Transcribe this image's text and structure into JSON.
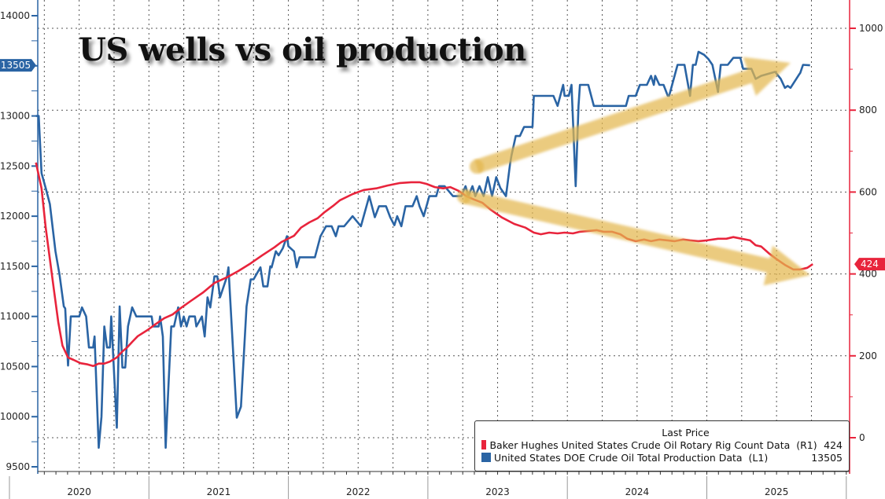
{
  "title": "US wells vs oil production",
  "legend": {
    "header": "Last Price",
    "items": [
      {
        "label": "Baker Hughes United States Crude Oil Rotary Rig Count Data  (R1)",
        "value": "424",
        "color": "#e8243c"
      },
      {
        "label": "United States DOE Crude Oil Total Production Data  (L1)",
        "value": "13505",
        "color": "#2a64a4"
      }
    ]
  },
  "chart_data": {
    "type": "line",
    "title": "US wells vs oil production",
    "x_tick_labels": [
      "2020",
      "2021",
      "2022",
      "2023",
      "2024",
      "2025"
    ],
    "xlim": [
      2020.0,
      2026.0
    ],
    "left_axis": {
      "ticks": [
        "14000",
        "13000",
        "12500",
        "12000",
        "11500",
        "11000",
        "10500",
        "10000",
        "9500"
      ],
      "ylim": [
        9450,
        14050
      ],
      "last_value_tag": "13505",
      "color": "#2a64a4"
    },
    "right_axis": {
      "ticks": [
        "1000",
        "800",
        "600",
        "400",
        "200",
        "0"
      ],
      "ylim": [
        -80,
        1060
      ],
      "last_value_tag": "424",
      "color": "#e8243c"
    },
    "grid": true,
    "legend_position": "bottom-right",
    "series": [
      {
        "name": "United States DOE Crude Oil Total Production Data (L1)",
        "axis": "left",
        "color": "#2a64a4",
        "x": [
          2020.19,
          2020.21,
          2020.23,
          2020.26,
          2020.29,
          2020.33,
          2020.36,
          2020.39,
          2020.4,
          2020.42,
          2020.44,
          2020.5,
          2020.52,
          2020.55,
          2020.57,
          2020.6,
          2020.61,
          2020.64,
          2020.66,
          2020.68,
          2020.7,
          2020.72,
          2020.73,
          2020.77,
          2020.79,
          2020.81,
          2020.83,
          2020.85,
          2020.88,
          2020.91,
          2021.02,
          2021.03,
          2021.07,
          2021.08,
          2021.1,
          2021.12,
          2021.13,
          2021.16,
          2021.18,
          2021.21,
          2021.23,
          2021.25,
          2021.27,
          2021.29,
          2021.33,
          2021.34,
          2021.38,
          2021.4,
          2021.42,
          2021.44,
          2021.47,
          2021.49,
          2021.51,
          2021.56,
          2021.57,
          2021.63,
          2021.66,
          2021.7,
          2021.73,
          2021.75,
          2021.8,
          2021.82,
          2021.85,
          2021.87,
          2021.88,
          2021.91,
          2021.93,
          2021.96,
          2021.99,
          2022.0,
          2022.04,
          2022.06,
          2022.08,
          2022.19,
          2022.23,
          2022.27,
          2022.31,
          2022.34,
          2022.36,
          2022.4,
          2022.46,
          2022.52,
          2022.58,
          2022.62,
          2022.65,
          2022.7,
          2022.73,
          2022.76,
          2022.78,
          2022.81,
          2022.84,
          2022.89,
          2022.92,
          2022.94,
          2022.97,
          2023.01,
          2023.06,
          2023.08,
          2023.12,
          2023.18,
          2023.24,
          2023.27,
          2023.29,
          2023.32,
          2023.34,
          2023.37,
          2023.4,
          2023.43,
          2023.46,
          2023.49,
          2023.52,
          2023.56,
          2023.59,
          2023.6,
          2023.63,
          2023.66,
          2023.69,
          2023.75,
          2023.76,
          2023.9,
          2023.93,
          2023.97,
          2023.98,
          2024.01,
          2024.03,
          2024.06,
          2024.08,
          2024.09,
          2024.15,
          2024.19,
          2024.42,
          2024.44,
          2024.49,
          2024.52,
          2024.57,
          2024.6,
          2024.62,
          2024.63,
          2024.66,
          2024.69,
          2024.72,
          2024.73,
          2024.79,
          2024.84,
          2024.88,
          2024.9,
          2024.92,
          2024.94,
          2024.98,
          2025.01,
          2025.04,
          2025.08,
          2025.1,
          2025.15,
          2025.19,
          2025.24,
          2025.26,
          2025.32,
          2025.35,
          2025.39,
          2025.49,
          2025.53,
          2025.56,
          2025.58,
          2025.6,
          2025.66,
          2025.67,
          2025.69,
          2025.74
        ],
        "values": [
          13000,
          13000,
          12430,
          12280,
          12120,
          11650,
          11410,
          11100,
          11080,
          10510,
          11000,
          11000,
          11090,
          11000,
          10690,
          10690,
          10800,
          9690,
          10000,
          10900,
          10690,
          10690,
          11000,
          9890,
          11100,
          10490,
          10490,
          10900,
          11090,
          11000,
          11000,
          10900,
          10900,
          11000,
          10800,
          9690,
          10000,
          10900,
          10900,
          11090,
          10900,
          11000,
          10900,
          11000,
          11000,
          10900,
          11000,
          10800,
          11190,
          11090,
          11400,
          11400,
          11190,
          11400,
          11490,
          9990,
          10100,
          11100,
          11370,
          11370,
          11490,
          11300,
          11300,
          11500,
          11490,
          11650,
          11610,
          11680,
          11800,
          11700,
          11650,
          11490,
          11590,
          11590,
          11800,
          11900,
          11900,
          11800,
          11900,
          11900,
          12000,
          11900,
          12200,
          11990,
          12100,
          12100,
          11990,
          11910,
          12000,
          11900,
          12100,
          12100,
          12200,
          12100,
          12000,
          12200,
          12200,
          12300,
          12300,
          12200,
          12200,
          12300,
          12200,
          12300,
          12200,
          12300,
          12200,
          12390,
          12200,
          12390,
          12280,
          12200,
          12530,
          12610,
          12800,
          12800,
          12890,
          12890,
          13200,
          13200,
          13100,
          13310,
          13200,
          13200,
          13310,
          12300,
          13100,
          13310,
          13310,
          13100,
          13100,
          13200,
          13200,
          13310,
          13310,
          13400,
          13310,
          13400,
          13310,
          13310,
          13200,
          13200,
          13510,
          13510,
          13200,
          13510,
          13510,
          13640,
          13610,
          13570,
          13510,
          13240,
          13510,
          13510,
          13580,
          13580,
          13470,
          13470,
          13370,
          13400,
          13440,
          13370,
          13280,
          13300,
          13280,
          13410,
          13430,
          13510,
          13505
        ]
      },
      {
        "name": "Baker Hughes United States Crude Oil Rotary Rig Count Data (R1)",
        "axis": "right",
        "color": "#e8243c",
        "x": [
          2020.19,
          2020.23,
          2020.26,
          2020.29,
          2020.32,
          2020.35,
          2020.38,
          2020.42,
          2020.46,
          2020.51,
          2020.56,
          2020.6,
          2020.64,
          2020.68,
          2020.72,
          2020.77,
          2020.81,
          2020.84,
          2020.88,
          2020.92,
          2020.99,
          2021.05,
          2021.11,
          2021.17,
          2021.23,
          2021.3,
          2021.39,
          2021.47,
          2021.56,
          2021.64,
          2021.73,
          2021.81,
          2021.9,
          2021.95,
          2022.04,
          2022.09,
          2022.15,
          2022.21,
          2022.26,
          2022.32,
          2022.37,
          2022.46,
          2022.54,
          2022.63,
          2022.71,
          2022.8,
          2022.88,
          2022.94,
          2022.99,
          2023.05,
          2023.11,
          2023.16,
          2023.22,
          2023.28,
          2023.33,
          2023.39,
          2023.45,
          2023.53,
          2023.62,
          2023.7,
          2023.76,
          2023.81,
          2023.87,
          2023.93,
          2023.98,
          2024.04,
          2024.09,
          2024.15,
          2024.21,
          2024.26,
          2024.32,
          2024.38,
          2024.43,
          2024.49,
          2024.55,
          2024.6,
          2024.66,
          2024.72,
          2024.77,
          2024.83,
          2024.88,
          2024.94,
          2025.0,
          2025.08,
          2025.14,
          2025.19,
          2025.25,
          2025.31,
          2025.35,
          2025.39,
          2025.45,
          2025.5,
          2025.56,
          2025.62,
          2025.67,
          2025.72,
          2025.76
        ],
        "values": [
          672,
          609,
          513,
          436,
          359,
          282,
          225,
          196,
          190,
          182,
          179,
          175,
          181,
          181,
          186,
          196,
          211,
          219,
          234,
          248,
          263,
          278,
          292,
          301,
          317,
          334,
          355,
          378,
          392,
          407,
          426,
          445,
          465,
          478,
          493,
          513,
          526,
          536,
          551,
          566,
          580,
          595,
          605,
          609,
          616,
          622,
          624,
          624,
          620,
          612,
          609,
          612,
          603,
          589,
          582,
          574,
          557,
          538,
          522,
          513,
          501,
          497,
          501,
          499,
          501,
          499,
          503,
          505,
          507,
          503,
          503,
          497,
          486,
          480,
          484,
          480,
          484,
          482,
          480,
          484,
          482,
          480,
          482,
          486,
          486,
          490,
          486,
          482,
          470,
          467,
          449,
          436,
          422,
          411,
          411,
          415,
          424
        ]
      }
    ]
  }
}
